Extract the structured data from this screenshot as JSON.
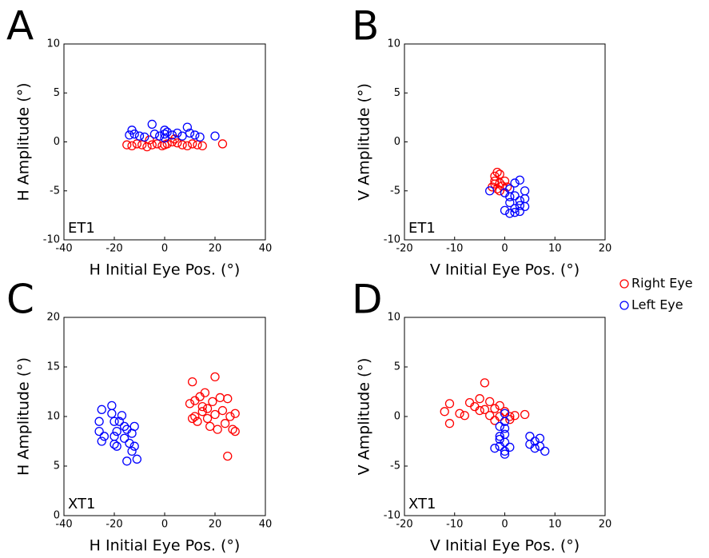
{
  "chart_data": [
    {
      "type": "scatter",
      "panel_label": "A",
      "annotation": "ET1",
      "x_label": "H Initial Eye Pos. (°)",
      "y_label": "H Amplitude (°)",
      "xlim": [
        -40,
        40
      ],
      "ylim": [
        -10,
        10
      ],
      "xticks": [
        -40,
        -20,
        0,
        20,
        40
      ],
      "yticks": [
        -10,
        -5,
        0,
        5,
        10
      ],
      "series": [
        {
          "color": "#ff0000",
          "x": [
            -15,
            -13,
            -11,
            -9,
            -7,
            -5,
            -3,
            -1,
            0,
            1,
            3,
            5,
            7,
            9,
            11,
            13,
            15,
            23,
            -6,
            4
          ],
          "values": [
            -0.3,
            -0.4,
            -0.2,
            -0.3,
            -0.5,
            -0.3,
            -0.2,
            -0.4,
            -0.3,
            -0.2,
            0,
            -0.1,
            -0.3,
            -0.4,
            -0.2,
            -0.3,
            -0.4,
            -0.2,
            0.2,
            0.3
          ]
        },
        {
          "color": "#0000ff",
          "x": [
            -13,
            -12,
            -10,
            -8,
            -5,
            -4,
            -2,
            0,
            0,
            0,
            1,
            3,
            5,
            7,
            9,
            10,
            12,
            14,
            20,
            -14
          ],
          "values": [
            1.2,
            0.8,
            0.6,
            0.5,
            1.8,
            0.8,
            0.6,
            1.2,
            0.8,
            0.4,
            1.0,
            0.7,
            0.9,
            0.6,
            1.5,
            0.9,
            0.7,
            0.5,
            0.6,
            0.7
          ]
        }
      ]
    },
    {
      "type": "scatter",
      "panel_label": "B",
      "annotation": "ET1",
      "x_label": "V Initial Eye Pos. (°)",
      "y_label": "V Amplitude (°)",
      "xlim": [
        -20,
        20
      ],
      "ylim": [
        -10,
        10
      ],
      "xticks": [
        -20,
        -10,
        0,
        10,
        20
      ],
      "yticks": [
        -10,
        -5,
        0,
        5,
        10
      ],
      "series": [
        {
          "name": "Right Eye",
          "color": "#ff0000",
          "x": [
            -2,
            -1.5,
            -1,
            -2,
            -1,
            -0.5,
            -1.5,
            -2.5,
            0,
            -1,
            0.5,
            -2
          ],
          "values": [
            -3.5,
            -3.1,
            -3.3,
            -4.0,
            -4.2,
            -4.5,
            -4.8,
            -4.6,
            -4.0,
            -5.0,
            -4.6,
            -4.3
          ]
        },
        {
          "name": "Left Eye",
          "color": "#0000ff",
          "x": [
            -3,
            0,
            1,
            2,
            3,
            1,
            2,
            3,
            4,
            3,
            1,
            0,
            2,
            4,
            3,
            1,
            2,
            4
          ],
          "values": [
            -5.0,
            -5.2,
            -5.6,
            -4.2,
            -3.9,
            -6.2,
            -6.8,
            -6.5,
            -5.8,
            -7.1,
            -7.3,
            -7.0,
            -5.5,
            -5.0,
            -6.0,
            -4.8,
            -7.2,
            -6.6
          ]
        }
      ]
    },
    {
      "type": "scatter",
      "panel_label": "C",
      "annotation": "XT1",
      "x_label": "H Initial Eye Pos. (°)",
      "y_label": "H Amplitude (°)",
      "xlim": [
        -40,
        40
      ],
      "ylim": [
        0,
        20
      ],
      "xticks": [
        -40,
        -20,
        0,
        20,
        40
      ],
      "yticks": [
        0,
        5,
        10,
        15,
        20
      ],
      "series": [
        {
          "color": "#ff0000",
          "x": [
            10,
            11,
            12,
            12,
            13,
            14,
            15,
            15,
            16,
            17,
            18,
            19,
            20,
            20,
            21,
            22,
            23,
            24,
            25,
            25,
            26,
            27,
            28,
            28,
            17,
            11
          ],
          "values": [
            11.3,
            13.5,
            10,
            11.6,
            9.5,
            12.0,
            11.0,
            10.5,
            12.4,
            10.8,
            9.0,
            11.5,
            14.0,
            10.2,
            8.7,
            11.9,
            10.6,
            9.3,
            6.0,
            11.8,
            10.0,
            8.7,
            10.3,
            8.5,
            9.8,
            9.8
          ]
        },
        {
          "color": "#0000ff",
          "x": [
            -26,
            -26,
            -25,
            -25,
            -24,
            -21,
            -21,
            -20,
            -20,
            -20,
            -19,
            -19,
            -17,
            -16,
            -16,
            -15,
            -15,
            -14,
            -13,
            -13,
            -12,
            -12,
            -11,
            -18
          ],
          "values": [
            9.5,
            8.5,
            10.7,
            7.5,
            8.0,
            11.1,
            10.3,
            9.5,
            8.0,
            7.2,
            7.0,
            8.5,
            10.1,
            9.0,
            7.8,
            8.7,
            5.5,
            7.3,
            6.5,
            8.3,
            9.0,
            7.0,
            5.7,
            9.5
          ]
        }
      ]
    },
    {
      "type": "scatter",
      "panel_label": "D",
      "annotation": "XT1",
      "x_label": "V Initial Eye Pos. (°)",
      "y_label": "V Amplitude (°)",
      "xlim": [
        -20,
        20
      ],
      "ylim": [
        -10,
        10
      ],
      "xticks": [
        -20,
        -10,
        0,
        10,
        20
      ],
      "yticks": [
        -10,
        -5,
        0,
        5,
        10
      ],
      "series": [
        {
          "color": "#ff0000",
          "x": [
            -12,
            -11,
            -11,
            -9,
            -8,
            -7,
            -6,
            -5,
            -4,
            -4,
            -3,
            -3,
            -2,
            -1,
            -1,
            0,
            1,
            1,
            2,
            4,
            -5,
            -2
          ],
          "values": [
            0.5,
            -0.7,
            1.3,
            0.3,
            0.1,
            1.4,
            1.0,
            1.8,
            3.4,
            0.7,
            0.1,
            1.5,
            -0.4,
            1.1,
            0.0,
            0.5,
            0.0,
            -0.3,
            0.1,
            0.2,
            0.6,
            0.8
          ]
        },
        {
          "color": "#0000ff",
          "x": [
            0,
            0,
            0,
            0,
            -1,
            -1,
            0,
            0,
            -2,
            1,
            -1,
            5,
            5,
            6,
            6,
            7,
            7,
            8,
            0,
            -1
          ],
          "values": [
            0.3,
            -0.5,
            -1.2,
            -1.8,
            -2.3,
            -3.0,
            -3.5,
            -3.8,
            -3.2,
            -3.1,
            -2.0,
            -2.0,
            -2.8,
            -2.5,
            -3.2,
            -2.2,
            -3.0,
            -3.5,
            -2.6,
            -1.0
          ]
        }
      ]
    }
  ]
}
